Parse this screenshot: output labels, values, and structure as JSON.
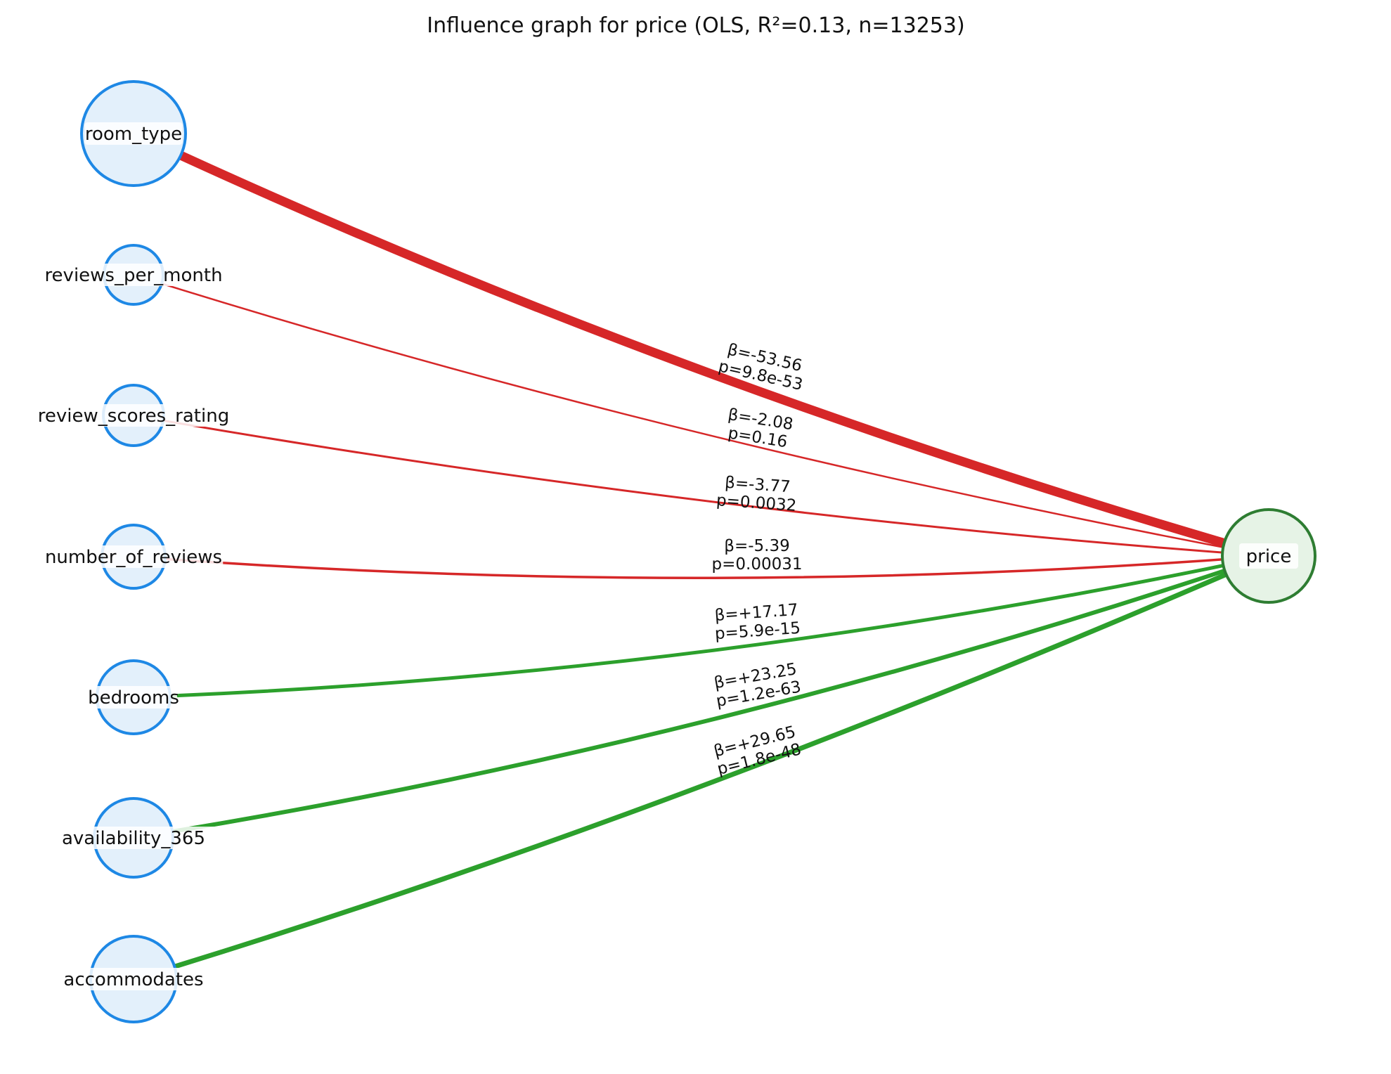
{
  "title": "Influence graph for price (OLS, R²=0.13, n=13253)",
  "colors": {
    "negative": "#d62728",
    "positive": "#2ca02c",
    "predictor_fill": "#e3f0fb",
    "predictor_stroke": "#1e88e5",
    "target_fill": "#e6f3e6",
    "target_stroke": "#2e7d32"
  },
  "target": {
    "label": "price"
  },
  "predictors": [
    {
      "label": "room_type",
      "beta": "β=-53.56",
      "p": "p=9.8e-53",
      "sign": "negative"
    },
    {
      "label": "reviews_per_month",
      "beta": "β=-2.08",
      "p": "p=0.16",
      "sign": "negative"
    },
    {
      "label": "review_scores_rating",
      "beta": "β=-3.77",
      "p": "p=0.0032",
      "sign": "negative"
    },
    {
      "label": "number_of_reviews",
      "beta": "β=-5.39",
      "p": "p=0.00031",
      "sign": "negative"
    },
    {
      "label": "bedrooms",
      "beta": "β=+17.17",
      "p": "p=5.9e-15",
      "sign": "positive"
    },
    {
      "label": "availability_365",
      "beta": "β=+23.25",
      "p": "p=1.2e-63",
      "sign": "positive"
    },
    {
      "label": "accommodates",
      "beta": "β=+29.65",
      "p": "p=1.8e-48",
      "sign": "positive"
    }
  ]
}
